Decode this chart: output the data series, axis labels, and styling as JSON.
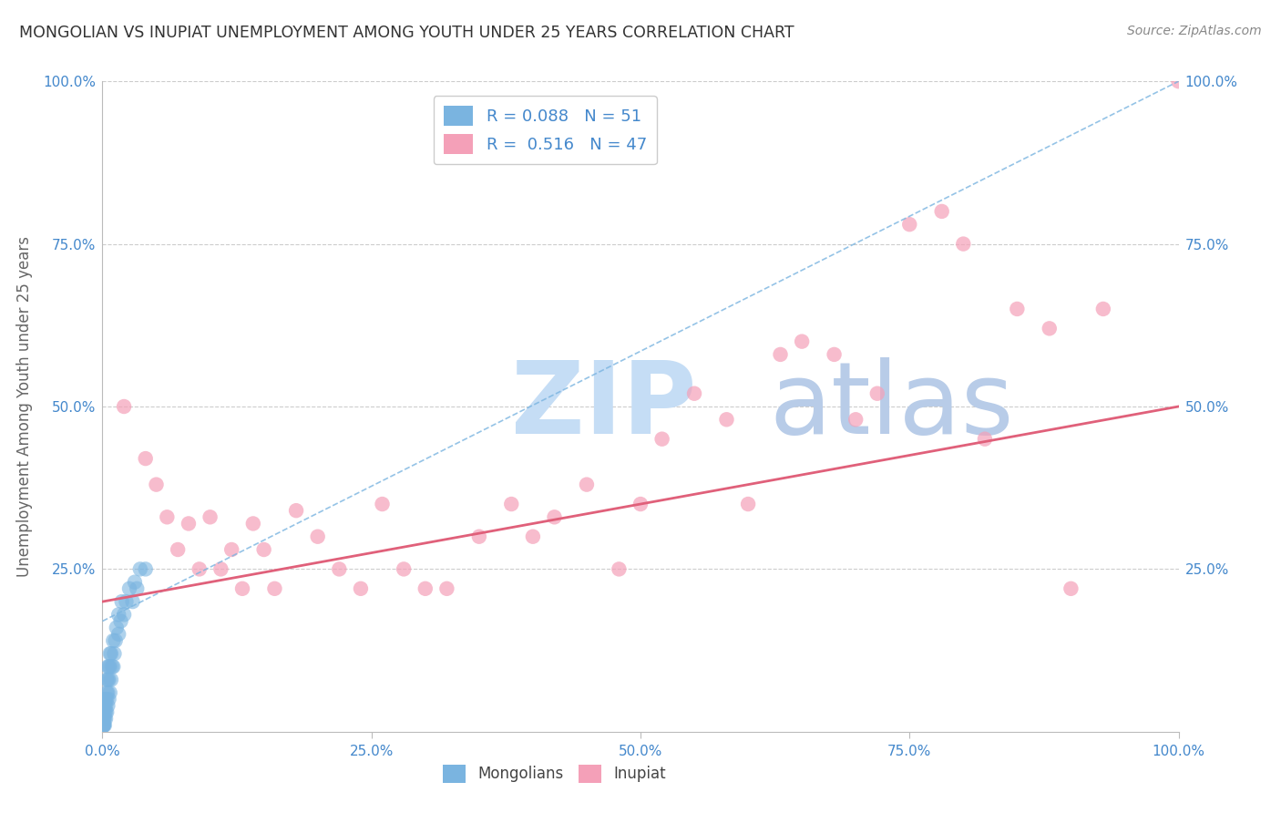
{
  "title": "MONGOLIAN VS INUPIAT UNEMPLOYMENT AMONG YOUTH UNDER 25 YEARS CORRELATION CHART",
  "source": "Source: ZipAtlas.com",
  "ylabel": "Unemployment Among Youth under 25 years",
  "mongolian_R": 0.088,
  "mongolian_N": 51,
  "inupiat_R": 0.516,
  "inupiat_N": 47,
  "mongolian_color": "#7ab4e0",
  "inupiat_color": "#f4a0b8",
  "mongolian_line_color": "#7ab4e0",
  "inupiat_line_color": "#e0607a",
  "background_color": "#ffffff",
  "grid_color": "#cccccc",
  "watermark_zip": "ZIP",
  "watermark_atlas": "atlas",
  "watermark_color_zip": "#c5ddf5",
  "watermark_color_atlas": "#b8cce8",
  "title_color": "#333333",
  "axis_label_color": "#666666",
  "tick_color": "#4488cc",
  "legend_color": "#4488cc",
  "mongolians_x": [
    0.001,
    0.001,
    0.001,
    0.001,
    0.001,
    0.001,
    0.001,
    0.001,
    0.002,
    0.002,
    0.002,
    0.002,
    0.002,
    0.003,
    0.003,
    0.003,
    0.003,
    0.004,
    0.004,
    0.004,
    0.004,
    0.005,
    0.005,
    0.005,
    0.005,
    0.006,
    0.006,
    0.006,
    0.007,
    0.007,
    0.007,
    0.008,
    0.008,
    0.009,
    0.01,
    0.01,
    0.011,
    0.012,
    0.013,
    0.015,
    0.015,
    0.017,
    0.018,
    0.02,
    0.022,
    0.025,
    0.028,
    0.03,
    0.032,
    0.035,
    0.04
  ],
  "mongolians_y": [
    0.01,
    0.01,
    0.01,
    0.01,
    0.02,
    0.02,
    0.03,
    0.04,
    0.01,
    0.02,
    0.03,
    0.04,
    0.05,
    0.02,
    0.03,
    0.04,
    0.05,
    0.03,
    0.05,
    0.06,
    0.08,
    0.04,
    0.06,
    0.08,
    0.1,
    0.05,
    0.08,
    0.1,
    0.06,
    0.1,
    0.12,
    0.08,
    0.12,
    0.1,
    0.1,
    0.14,
    0.12,
    0.14,
    0.16,
    0.15,
    0.18,
    0.17,
    0.2,
    0.18,
    0.2,
    0.22,
    0.2,
    0.23,
    0.22,
    0.25,
    0.25
  ],
  "inupiat_x": [
    0.02,
    0.04,
    0.05,
    0.06,
    0.07,
    0.08,
    0.09,
    0.1,
    0.11,
    0.12,
    0.13,
    0.14,
    0.15,
    0.16,
    0.18,
    0.2,
    0.22,
    0.24,
    0.26,
    0.28,
    0.3,
    0.32,
    0.35,
    0.38,
    0.4,
    0.42,
    0.45,
    0.48,
    0.5,
    0.52,
    0.55,
    0.58,
    0.6,
    0.63,
    0.65,
    0.68,
    0.7,
    0.72,
    0.75,
    0.78,
    0.8,
    0.82,
    0.85,
    0.88,
    0.9,
    0.93,
    1.0
  ],
  "inupiat_y": [
    0.5,
    0.42,
    0.38,
    0.33,
    0.28,
    0.32,
    0.25,
    0.33,
    0.25,
    0.28,
    0.22,
    0.32,
    0.28,
    0.22,
    0.34,
    0.3,
    0.25,
    0.22,
    0.35,
    0.25,
    0.22,
    0.22,
    0.3,
    0.35,
    0.3,
    0.33,
    0.38,
    0.25,
    0.35,
    0.45,
    0.52,
    0.48,
    0.35,
    0.58,
    0.6,
    0.58,
    0.48,
    0.52,
    0.78,
    0.8,
    0.75,
    0.45,
    0.65,
    0.62,
    0.22,
    0.65,
    1.0
  ],
  "xlim": [
    0.0,
    1.0
  ],
  "ylim": [
    0.0,
    1.0
  ],
  "xticks": [
    0.0,
    0.25,
    0.5,
    0.75,
    1.0
  ],
  "yticks": [
    0.25,
    0.5,
    0.75,
    1.0
  ],
  "xticklabels": [
    "0.0%",
    "25.0%",
    "50.0%",
    "75.0%",
    "100.0%"
  ],
  "yticklabels": [
    "25.0%",
    "50.0%",
    "75.0%",
    "100.0%"
  ],
  "inupiat_line_start_x": 0.0,
  "inupiat_line_start_y": 0.2,
  "inupiat_line_end_x": 1.0,
  "inupiat_line_end_y": 0.5,
  "mongolian_line_start_x": 0.0,
  "mongolian_line_start_y": 0.17,
  "mongolian_line_end_x": 1.0,
  "mongolian_line_end_y": 1.0
}
